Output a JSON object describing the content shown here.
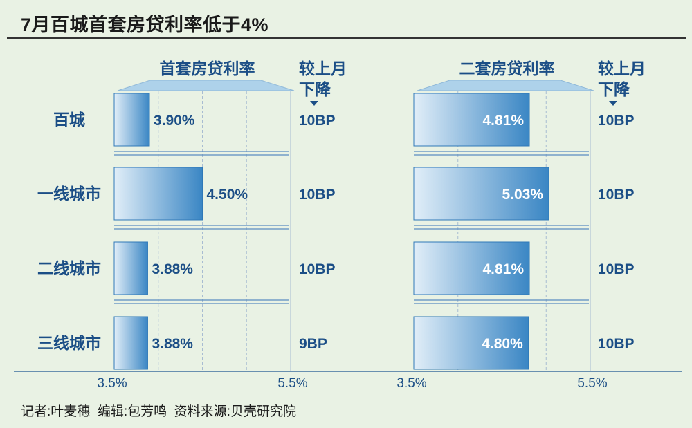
{
  "title": "7月百城首套房贷利率低于4%",
  "credit": "记者:叶麦穗  编辑:包芳鸣  资料来源:贝壳研究院",
  "colors": {
    "text": "#1b4e86",
    "bar_dark": "#3a86c4",
    "bar_light": "#e1eef8",
    "grid": "#a8bcd2",
    "axis": "#3f6f9e",
    "bg": "#e9f2e4"
  },
  "chart_data": {
    "type": "bar",
    "orientation": "horizontal",
    "categories": [
      "百城",
      "一线城市",
      "二线城市",
      "三线城市"
    ],
    "xlim": [
      3.5,
      5.5
    ],
    "tick_labels": [
      "3.5%",
      "5.5%"
    ],
    "panels": [
      {
        "name": "首套房贷利率",
        "values": [
          3.9,
          4.5,
          3.88,
          3.88
        ],
        "labels": [
          "3.90%",
          "4.50%",
          "3.88%",
          "3.88%"
        ],
        "change_header": "较上月下降",
        "changes": [
          "10BP",
          "10BP",
          "10BP",
          "9BP"
        ]
      },
      {
        "name": "二套房贷利率",
        "values": [
          4.81,
          5.03,
          4.81,
          4.8
        ],
        "labels": [
          "4.81%",
          "5.03%",
          "4.81%",
          "4.80%"
        ],
        "change_header": "较上月下降",
        "changes": [
          "10BP",
          "10BP",
          "10BP",
          "10BP"
        ]
      }
    ]
  }
}
